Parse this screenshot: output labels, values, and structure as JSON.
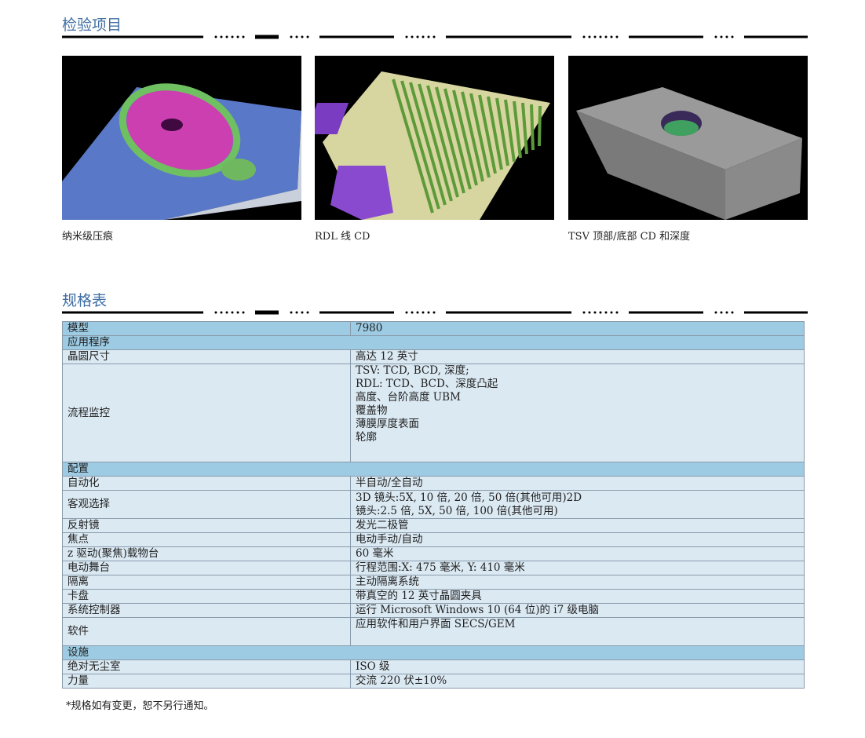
{
  "sections": {
    "inspection": {
      "title": "检验项目",
      "items": [
        {
          "caption": "纳米级压痕",
          "image": "nano-indentation-3d"
        },
        {
          "caption": "RDL 线 CD",
          "image": "rdl-line-3d"
        },
        {
          "caption": "TSV 顶部/底部 CD 和深度",
          "image": "tsv-hole-3d"
        }
      ]
    },
    "spec": {
      "title": "规格表",
      "rows": [
        {
          "type": "header",
          "label": "模型",
          "value": "7980"
        },
        {
          "type": "section",
          "label": "应用程序"
        },
        {
          "label": "晶圆尺寸",
          "value": [
            "高达 12 英寸"
          ]
        },
        {
          "label": "流程监控",
          "value": [
            "TSV: TCD, BCD, 深度;",
            "RDL: TCD、BCD、深度凸起",
            "高度、台阶高度 UBM",
            "覆盖物",
            "薄膜厚度表面",
            "轮廓"
          ]
        },
        {
          "type": "section",
          "label": "配置"
        },
        {
          "label": "自动化",
          "value": [
            "半自动/全自动"
          ]
        },
        {
          "label": "客观选择",
          "value": [
            "3D 镜头:5X, 10 倍, 20 倍, 50 倍(其他可用)2D",
            "镜头:2.5 倍, 5X, 50 倍, 100 倍(其他可用)"
          ]
        },
        {
          "label": "反射镜",
          "value": [
            "发光二极管"
          ]
        },
        {
          "label": "焦点",
          "value": [
            "电动手动/自动"
          ]
        },
        {
          "label": "z 驱动(聚焦)载物台",
          "value": [
            "60 毫米"
          ]
        },
        {
          "label": "电动舞台",
          "value": [
            "行程范围:X: 475 毫米, Y: 410 毫米"
          ]
        },
        {
          "label": "隔离",
          "value": [
            "主动隔离系统"
          ]
        },
        {
          "label": "卡盘",
          "value": [
            "带真空的 12 英寸晶圆夹具"
          ]
        },
        {
          "label": "系统控制器",
          "value": [
            "运行 Microsoft Windows 10 (64 位)的 i7 级电脑"
          ]
        },
        {
          "label": "软件",
          "value": [
            "应用软件和用户界面 SECS/GEM"
          ]
        },
        {
          "type": "section",
          "label": "设施"
        },
        {
          "label": "绝对无尘室",
          "value": [
            "ISO 级"
          ]
        },
        {
          "label": "力量",
          "value": [
            "交流 220 伏±10%"
          ]
        }
      ],
      "footnote": "*规格如有变更，恕不另行通知。"
    }
  },
  "colors": {
    "title": "#3f6ea3",
    "header_row": "#9ccbe3",
    "body_row": "#dbe9f3"
  }
}
